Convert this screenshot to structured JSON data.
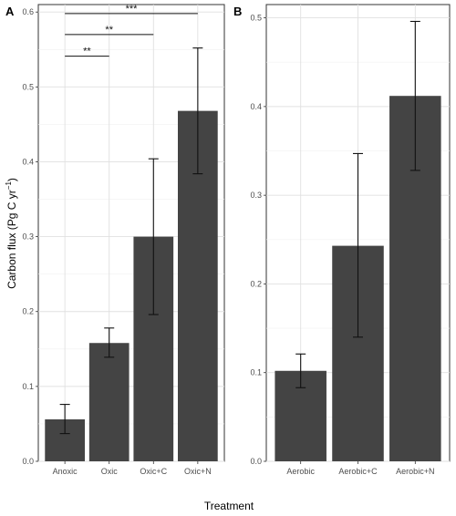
{
  "chart_data": [
    {
      "type": "bar",
      "panel_label": "A",
      "categories": [
        "Anoxic",
        "Oxic",
        "Oxic+C",
        "Oxic+N"
      ],
      "values": [
        0.056,
        0.158,
        0.3,
        0.468
      ],
      "error_low": [
        0.037,
        0.139,
        0.196,
        0.384
      ],
      "error_high": [
        0.076,
        0.178,
        0.404,
        0.552
      ],
      "ylim": [
        0,
        0.61
      ],
      "yticks": [
        0.0,
        0.1,
        0.2,
        0.3,
        0.4,
        0.5,
        0.6
      ],
      "ytick_labels": [
        "0.0",
        "0.1",
        "0.2",
        "0.3",
        "0.4",
        "0.5",
        "0.6"
      ],
      "ylabel_main": "Carbon flux (Pg C yr",
      "ylabel_sup": "−1",
      "ylabel_close": ")",
      "grid": true,
      "significance": [
        {
          "from": 0,
          "to": 1,
          "y": 0.541,
          "label": "**"
        },
        {
          "from": 0,
          "to": 2,
          "y": 0.57,
          "label": "**"
        },
        {
          "from": 0,
          "to": 3,
          "y": 0.598,
          "label": "***"
        }
      ]
    },
    {
      "type": "bar",
      "panel_label": "B",
      "categories": [
        "Aerobic",
        "Aerobic+C",
        "Aerobic+N"
      ],
      "values": [
        0.102,
        0.243,
        0.412
      ],
      "error_low": [
        0.083,
        0.14,
        0.328
      ],
      "error_high": [
        0.121,
        0.347,
        0.496
      ],
      "ylim": [
        0,
        0.515
      ],
      "yticks": [
        0.0,
        0.1,
        0.2,
        0.3,
        0.4,
        0.5
      ],
      "ytick_labels": [
        "0.0",
        "0.1",
        "0.2",
        "0.3",
        "0.4",
        "0.5"
      ],
      "grid": true
    }
  ],
  "xlabel": "Treatment"
}
